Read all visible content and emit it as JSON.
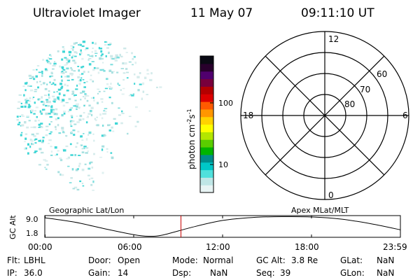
{
  "header": {
    "title": "Ultraviolet Imager",
    "date": "11 May 07",
    "time": "09:11:10 UT"
  },
  "colorbar": {
    "unit_label": "photon cm",
    "unit_sup1": "-2",
    "unit_mid": "s",
    "unit_sup2": "-1",
    "ticks": [
      "100",
      "10"
    ],
    "colors": [
      "#e8f4f4",
      "#bfe6e6",
      "#50e0dc",
      "#00c8c8",
      "#008c8c",
      "#00b400",
      "#5acd00",
      "#b4e600",
      "#ffff00",
      "#ffd200",
      "#ff9600",
      "#ff5a00",
      "#dc0000",
      "#b40000",
      "#78003c",
      "#50006e",
      "#28002c",
      "#0a0a14"
    ]
  },
  "polar": {
    "mlt_labels": {
      "top": "12",
      "left": "18",
      "right": "6",
      "bottom": "0"
    },
    "lat_labels": [
      "60",
      "70",
      "80"
    ]
  },
  "orbit": {
    "left_label": "Geographic Lat/Lon",
    "right_label": "Apex MLat/MLT",
    "axis_title": "GC Alt",
    "y_ticks": [
      "9.0",
      "1.8"
    ],
    "x_ticks": [
      "00:00",
      "06:00",
      "12:00",
      "18:00",
      "23:59"
    ],
    "current_time_hours": 9.19,
    "marker_color": "#c80000",
    "altitude_track": [
      [
        0,
        8.6
      ],
      [
        2,
        7.0
      ],
      [
        4,
        4.6
      ],
      [
        6,
        2.4
      ],
      [
        7,
        1.8
      ],
      [
        8,
        2.3
      ],
      [
        10,
        5.2
      ],
      [
        12,
        7.6
      ],
      [
        14,
        8.7
      ],
      [
        16,
        9.0
      ],
      [
        18,
        8.9
      ],
      [
        20,
        8.1
      ],
      [
        22,
        6.4
      ],
      [
        23.98,
        4.2
      ]
    ]
  },
  "info": {
    "flt_label": "Flt:",
    "flt_value": "LBHL",
    "ip_label": "IP:",
    "ip_value": "36.0",
    "door_label": "Door:",
    "door_value": "Open",
    "gain_label": "Gain:",
    "gain_value": "14",
    "mode_label": "Mode:",
    "mode_value": "Normal",
    "dsp_label": "Dsp:",
    "dsp_value": "NaN",
    "gcalt_label": "GC Alt:",
    "gcalt_value": "3.8 Re",
    "seq_label": "Seq:",
    "seq_value": "39",
    "glat_label": "GLat:",
    "glat_value": "NaN",
    "glon_label": "GLon:",
    "glon_value": "NaN"
  }
}
